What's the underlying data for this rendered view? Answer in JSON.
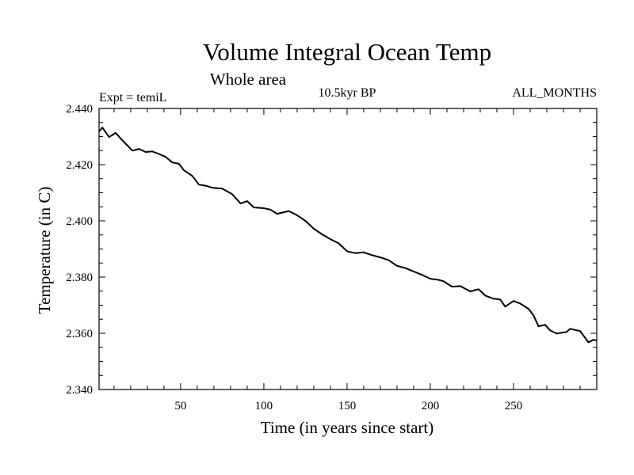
{
  "chart_data": {
    "type": "line",
    "title": "Volume Integral Ocean Temp",
    "subtitle": "Whole area",
    "left_note": "Expt = temiL",
    "center_note": "10.5kyr BP",
    "right_note": "ALL_MONTHS",
    "xlabel": "Time (in years since start)",
    "ylabel": "Temperature (in C)",
    "xlim": [
      1,
      300
    ],
    "ylim": [
      2.34,
      2.44
    ],
    "xticks": [
      50,
      100,
      150,
      200,
      250
    ],
    "xtick_labels": [
      "50",
      "100",
      "150",
      "200",
      "250"
    ],
    "yticks": [
      2.34,
      2.36,
      2.38,
      2.4,
      2.42,
      2.44
    ],
    "ytick_labels": [
      "2.340",
      "2.360",
      "2.380",
      "2.400",
      "2.420",
      "2.440"
    ],
    "grid": false,
    "line_color": "#000000",
    "series": [
      {
        "name": "temiL",
        "x": [
          1,
          3,
          7,
          11,
          14,
          21,
          25,
          29,
          33,
          37,
          41,
          45,
          49,
          52,
          57,
          61,
          65,
          69,
          75,
          81,
          86,
          90,
          94,
          100,
          104,
          108,
          115,
          120,
          125,
          130,
          135,
          140,
          145,
          150,
          155,
          160,
          165,
          170,
          175,
          180,
          185,
          190,
          195,
          200,
          205,
          208,
          213,
          218,
          224,
          229,
          233,
          238,
          242,
          245,
          250,
          254,
          259,
          262,
          265,
          269,
          272,
          276,
          282,
          284,
          290,
          295,
          298,
          300
        ],
        "y": [
          2.4318,
          2.4332,
          2.4298,
          2.4313,
          2.4293,
          2.425,
          2.4256,
          2.4245,
          2.4247,
          2.4238,
          2.4228,
          2.4208,
          2.4203,
          2.418,
          2.416,
          2.4129,
          2.4125,
          2.4118,
          2.4115,
          2.4095,
          2.4062,
          2.407,
          2.4048,
          2.4045,
          2.404,
          2.4025,
          2.4035,
          2.402,
          2.4,
          2.3972,
          2.3952,
          2.3935,
          2.392,
          2.3892,
          2.3885,
          2.3888,
          2.3878,
          2.387,
          2.386,
          2.384,
          2.3832,
          2.382,
          2.3808,
          2.3794,
          2.379,
          2.3785,
          2.3766,
          2.3768,
          2.3749,
          2.3757,
          2.3734,
          2.3723,
          2.372,
          2.3695,
          2.3715,
          2.3706,
          2.3687,
          2.3664,
          2.3625,
          2.363,
          2.361,
          2.3599,
          2.3605,
          2.3616,
          2.3608,
          2.3568,
          2.3577,
          2.3574
        ]
      }
    ]
  }
}
